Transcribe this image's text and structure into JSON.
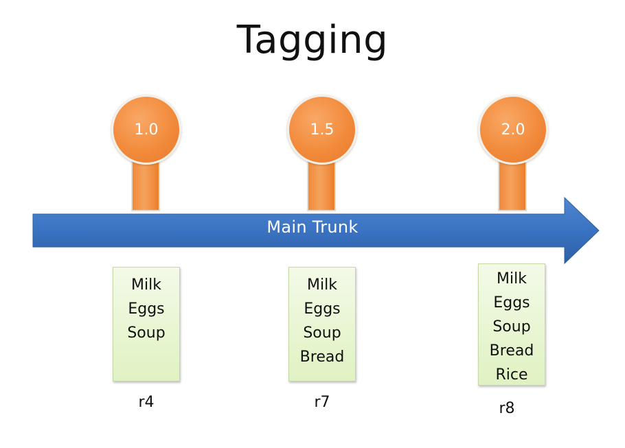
{
  "title": "Tagging",
  "trunk": {
    "label": "Main Trunk",
    "color": "#3a73c2"
  },
  "tags": [
    {
      "label": "1.0",
      "items": [
        "Milk",
        "Eggs",
        "Soup"
      ],
      "revision": "r4"
    },
    {
      "label": "1.5",
      "items": [
        "Milk",
        "Eggs",
        "Soup",
        "Bread"
      ],
      "revision": "r7"
    },
    {
      "label": "2.0",
      "items": [
        "Milk",
        "Eggs",
        "Soup",
        "Bread",
        "Rice"
      ],
      "revision": "r8"
    }
  ],
  "colors": {
    "tag_orange": "#f28b3c",
    "box_green": "#e0f2c2"
  }
}
